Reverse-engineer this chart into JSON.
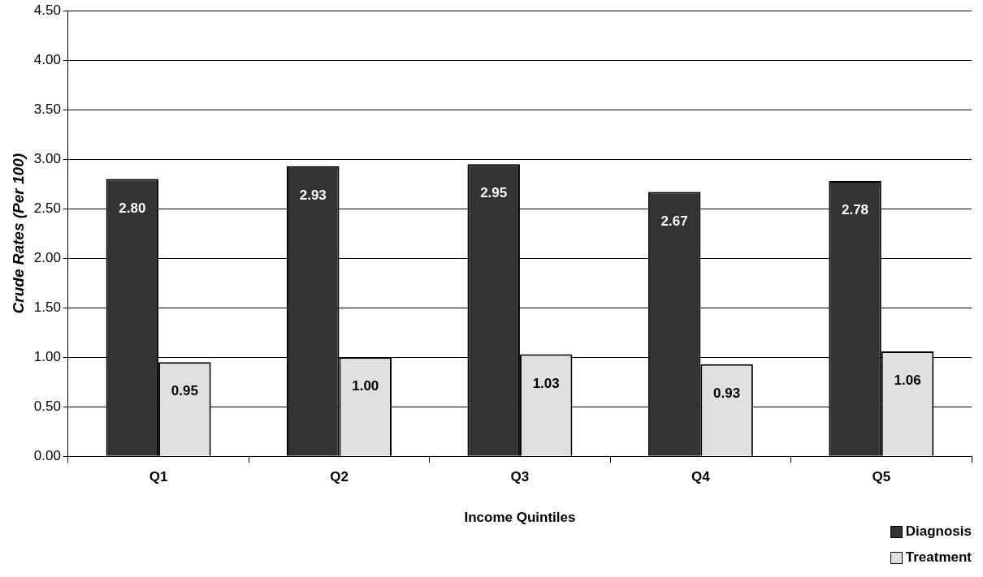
{
  "chart_data": {
    "type": "bar",
    "xlabel": "Income Quintiles",
    "ylabel": "Crude Rates (Per 100)",
    "categories": [
      "Q1",
      "Q2",
      "Q3",
      "Q4",
      "Q5"
    ],
    "series": [
      {
        "name": "Diagnosis",
        "color": "#333333",
        "values": [
          2.8,
          2.93,
          2.95,
          2.67,
          2.78
        ],
        "value_labels": [
          "2.80",
          "2.93",
          "2.95",
          "2.67",
          "2.78"
        ]
      },
      {
        "name": "Treatment",
        "color": "#e0e0e0",
        "values": [
          0.95,
          1.0,
          1.03,
          0.93,
          1.06
        ],
        "value_labels": [
          "0.95",
          "1.00",
          "1.03",
          "0.93",
          "1.06"
        ]
      }
    ],
    "ylim": [
      0,
      4.5
    ],
    "yticks": [
      {
        "value": 0,
        "label": "0.00"
      },
      {
        "value": 0.5,
        "label": "0.50"
      },
      {
        "value": 1,
        "label": "1.00"
      },
      {
        "value": 1.5,
        "label": "1.50"
      },
      {
        "value": 2,
        "label": "2.00"
      },
      {
        "value": 2.5,
        "label": "2.50"
      },
      {
        "value": 3,
        "label": "3.00"
      },
      {
        "value": 3.5,
        "label": "3.50"
      },
      {
        "value": 4,
        "label": "4.00"
      },
      {
        "value": 4.5,
        "label": "4.50"
      }
    ],
    "grid": "y",
    "legend": "bottom right"
  }
}
